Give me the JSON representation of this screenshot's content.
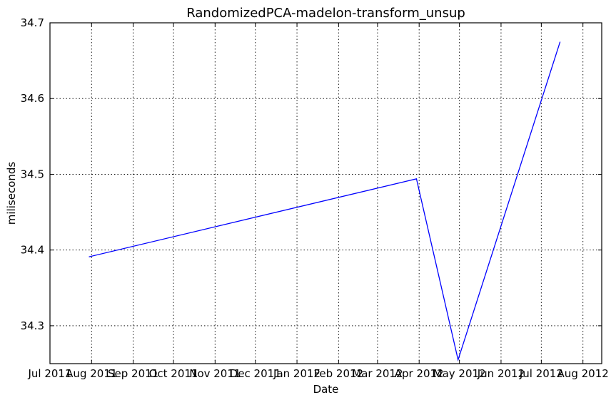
{
  "chart_data": {
    "type": "line",
    "title": "RandomizedPCA-madelon-transform_unsup",
    "xlabel": "Date",
    "ylabel": "miliseconds",
    "x_axis_type": "date",
    "xlim": [
      "2011-07-01",
      "2012-08-15"
    ],
    "ylim": [
      34.25,
      34.7
    ],
    "grid": true,
    "x_ticks": [
      {
        "date": "2011-07-01",
        "label": "Jul 2011"
      },
      {
        "date": "2011-08-01",
        "label": "Aug 2011"
      },
      {
        "date": "2011-09-01",
        "label": "Sep 2011"
      },
      {
        "date": "2011-10-01",
        "label": "Oct 2011"
      },
      {
        "date": "2011-11-01",
        "label": "Nov 2011"
      },
      {
        "date": "2011-12-01",
        "label": "Dec 2011"
      },
      {
        "date": "2012-01-01",
        "label": "Jan 2012"
      },
      {
        "date": "2012-02-01",
        "label": "Feb 2012"
      },
      {
        "date": "2012-03-01",
        "label": "Mar 2012"
      },
      {
        "date": "2012-04-01",
        "label": "Apr 2012"
      },
      {
        "date": "2012-05-01",
        "label": "May 2012"
      },
      {
        "date": "2012-06-01",
        "label": "Jun 2012"
      },
      {
        "date": "2012-07-01",
        "label": "Jul 2012"
      },
      {
        "date": "2012-08-01",
        "label": "Aug 2012"
      }
    ],
    "y_ticks": [
      {
        "value": 34.3,
        "label": "34.3"
      },
      {
        "value": 34.4,
        "label": "34.4"
      },
      {
        "value": 34.5,
        "label": "34.5"
      },
      {
        "value": 34.6,
        "label": "34.6"
      },
      {
        "value": 34.7,
        "label": "34.7"
      }
    ],
    "series": [
      {
        "color": "#0000ff",
        "points": [
          {
            "x": "2011-07-30",
            "y": 34.391
          },
          {
            "x": "2012-03-30",
            "y": 34.494
          },
          {
            "x": "2012-04-30",
            "y": 34.255
          },
          {
            "x": "2012-07-15",
            "y": 34.675
          }
        ]
      }
    ]
  }
}
